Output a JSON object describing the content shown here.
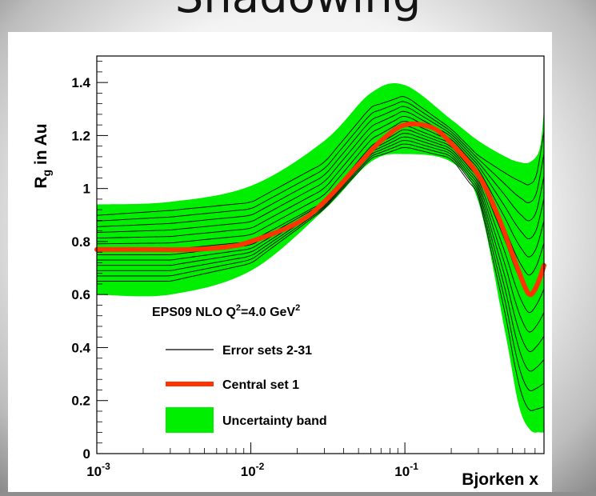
{
  "slide": {
    "title": "Shadowing"
  },
  "chart_data": {
    "type": "line",
    "title": "",
    "xlabel": "Bjorken x",
    "ylabel": "R_g in Au",
    "xscale": "log",
    "xlim": [
      0.001,
      0.8
    ],
    "ylim": [
      0,
      1.5
    ],
    "yticks": [
      0,
      0.2,
      0.4,
      0.6,
      0.8,
      1,
      1.2,
      1.4
    ],
    "ytick_labels": [
      "0",
      "0.2",
      "0.4",
      "0.6",
      "0.8",
      "1",
      "1.2",
      "1.4"
    ],
    "xticks": [
      0.001,
      0.01,
      0.1
    ],
    "xtick_labels": [
      {
        "base": "10",
        "exp": "-3"
      },
      {
        "base": "10",
        "exp": "-2"
      },
      {
        "base": "10",
        "exp": "-1"
      }
    ],
    "grid": false,
    "annotation": {
      "text": "EPS09 NLO Q",
      "sup": "2",
      "text2": "=4.0 GeV",
      "sup2": "2"
    },
    "legend": {
      "placement": "lower-left",
      "entries": [
        {
          "label": "Error sets 2-31",
          "style": "thin-line",
          "color": "#000000"
        },
        {
          "label": "Central set 1",
          "style": "thick-line",
          "color": "#ff3300"
        },
        {
          "label": "Uncertainty band",
          "style": "filled-box",
          "color": "#00ee00"
        }
      ]
    },
    "band": {
      "name": "Uncertainty band",
      "color": "#00ee00",
      "x": [
        0.001,
        0.003,
        0.01,
        0.03,
        0.06,
        0.1,
        0.2,
        0.3,
        0.45,
        0.55,
        0.65,
        0.75,
        0.8
      ],
      "lower": [
        0.6,
        0.6,
        0.69,
        0.92,
        1.1,
        1.13,
        1.1,
        0.95,
        0.45,
        0.18,
        0.09,
        0.08,
        0.08
      ],
      "upper": [
        0.94,
        0.95,
        1.01,
        1.18,
        1.36,
        1.39,
        1.26,
        1.18,
        1.12,
        1.1,
        1.1,
        1.15,
        1.3
      ]
    },
    "series": [
      {
        "name": "Central set 1",
        "color": "#ff3300",
        "x": [
          0.001,
          0.002,
          0.004,
          0.007,
          0.01,
          0.02,
          0.03,
          0.05,
          0.07,
          0.1,
          0.15,
          0.2,
          0.3,
          0.4,
          0.5,
          0.6,
          0.65,
          0.7,
          0.75,
          0.8
        ],
        "y": [
          0.77,
          0.77,
          0.77,
          0.78,
          0.8,
          0.87,
          0.95,
          1.09,
          1.18,
          1.24,
          1.23,
          1.17,
          1.05,
          0.9,
          0.75,
          0.63,
          0.6,
          0.62,
          0.66,
          0.71
        ]
      }
    ],
    "error_set_offsets": {
      "x": [
        0.001,
        0.003,
        0.01,
        0.03,
        0.06,
        0.1,
        0.2,
        0.3,
        0.45,
        0.55,
        0.65,
        0.75,
        0.8
      ],
      "mid": [
        0.77,
        0.77,
        0.8,
        0.95,
        1.16,
        1.24,
        1.17,
        1.05,
        0.8,
        0.66,
        0.6,
        0.66,
        0.71
      ],
      "up": [
        0.14,
        0.16,
        0.16,
        0.16,
        0.16,
        0.12,
        0.06,
        0.08,
        0.28,
        0.4,
        0.45,
        0.45,
        0.55
      ],
      "down": [
        0.13,
        0.13,
        0.09,
        0.03,
        0.05,
        0.09,
        0.06,
        0.08,
        0.3,
        0.45,
        0.48,
        0.53,
        0.58
      ],
      "count": 13
    }
  }
}
